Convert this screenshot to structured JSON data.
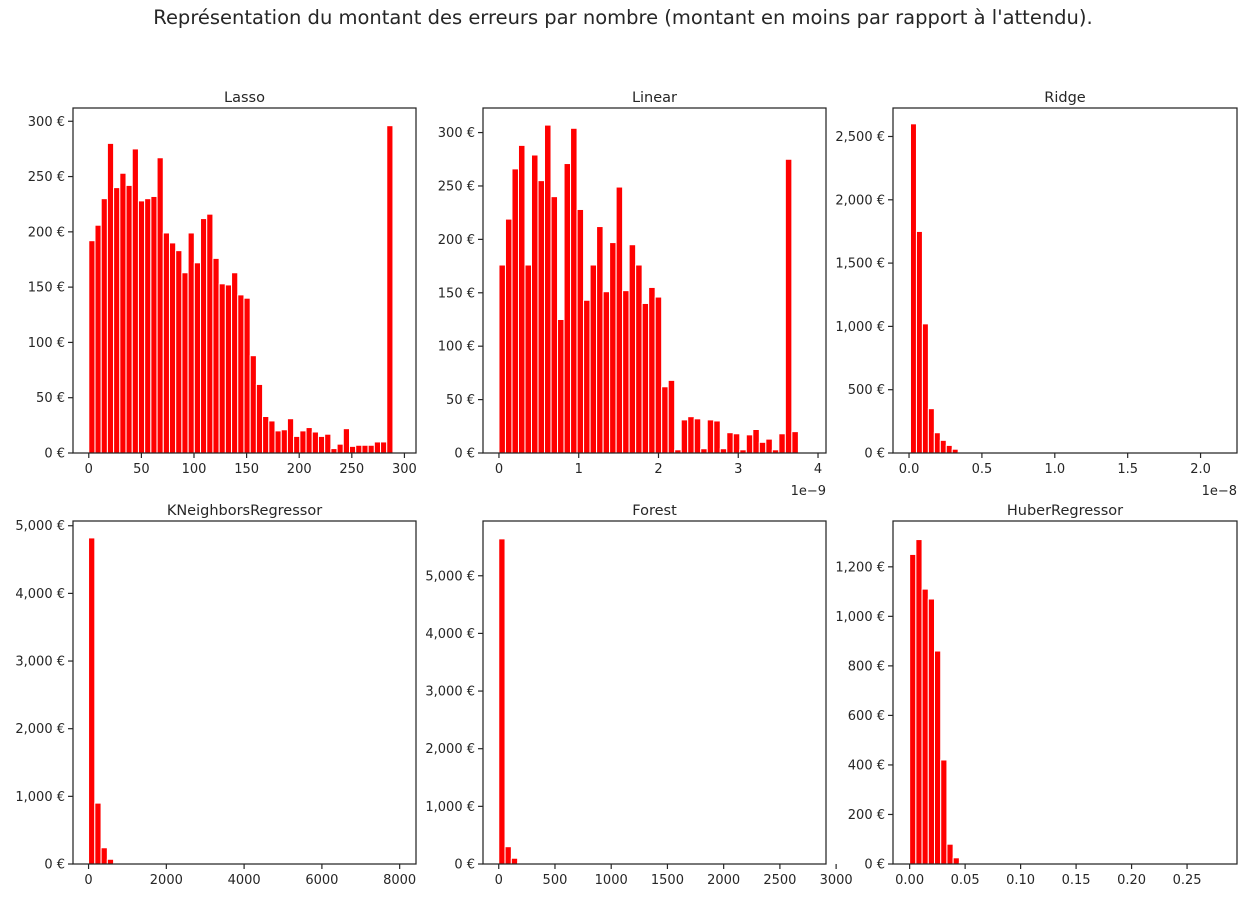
{
  "figure": {
    "suptitle": "Représentation du montant des erreurs par nombre (montant en moins par rapport à l'attendu).",
    "bar_color": "#ff0000",
    "axis_color": "#262626",
    "background": "#ffffff"
  },
  "chart_data": [
    {
      "type": "bar",
      "title": "Lasso",
      "xlim": [
        -15,
        311
      ],
      "ylim": [
        0,
        312
      ],
      "xticks": [
        0,
        50,
        100,
        150,
        200,
        250,
        300
      ],
      "xtick_labels": [
        "0",
        "50",
        "100",
        "150",
        "200",
        "250",
        "300"
      ],
      "yticks": [
        0,
        50,
        100,
        150,
        200,
        250,
        300
      ],
      "ytick_labels": [
        "0 €",
        "50 €",
        "100 €",
        "150 €",
        "200 €",
        "250 €",
        "300 €"
      ],
      "offset_label": "",
      "bin_edges_start": 0,
      "bin_width": 5.9,
      "values": [
        192,
        206,
        230,
        280,
        240,
        253,
        242,
        275,
        228,
        230,
        232,
        267,
        199,
        190,
        183,
        163,
        199,
        172,
        212,
        216,
        176,
        153,
        152,
        163,
        143,
        140,
        88,
        62,
        33,
        29,
        20,
        21,
        31,
        15,
        20,
        23,
        19,
        15,
        17,
        4,
        8,
        22,
        6,
        7,
        7,
        7,
        10,
        10,
        296
      ]
    },
    {
      "type": "bar",
      "title": "Linear",
      "xlim": [
        -0.2,
        4.1
      ],
      "ylim": [
        0,
        323
      ],
      "xticks": [
        0,
        1,
        2,
        3,
        4
      ],
      "xtick_labels": [
        "0",
        "1",
        "2",
        "3",
        "4"
      ],
      "yticks": [
        0,
        50,
        100,
        150,
        200,
        250,
        300
      ],
      "ytick_labels": [
        "0 €",
        "50 €",
        "100 €",
        "150 €",
        "200 €",
        "250 €",
        "300 €"
      ],
      "offset_label": "1e−9",
      "bin_edges_start": 0,
      "bin_width": 0.0816,
      "values": [
        176,
        219,
        266,
        288,
        176,
        279,
        255,
        307,
        240,
        125,
        271,
        304,
        228,
        143,
        176,
        212,
        151,
        197,
        249,
        152,
        195,
        176,
        140,
        155,
        146,
        62,
        68,
        3,
        31,
        34,
        32,
        4,
        31,
        30,
        4,
        19,
        18,
        3,
        17,
        22,
        10,
        13,
        3,
        18,
        275,
        20
      ]
    },
    {
      "type": "bar",
      "title": "Ridge",
      "xlim": [
        -0.11,
        2.25
      ],
      "ylim": [
        0,
        2725
      ],
      "xticks": [
        0,
        0.5,
        1.0,
        1.5,
        2.0
      ],
      "xtick_labels": [
        "0.0",
        "0.5",
        "1.0",
        "1.5",
        "2.0"
      ],
      "yticks": [
        0,
        500,
        1000,
        1500,
        2000,
        2500
      ],
      "ytick_labels": [
        "0 €",
        "500 €",
        "1,000 €",
        "1,500 €",
        "2,000 €",
        "2,500 €"
      ],
      "offset_label": "1e−8",
      "bin_edges_start": 0.01,
      "bin_width": 0.0409,
      "values": [
        2600,
        1750,
        1020,
        350,
        160,
        100,
        60,
        30,
        5,
        3,
        2,
        2,
        1,
        1,
        1,
        0,
        0,
        0,
        0,
        0,
        0,
        0,
        0,
        0,
        0,
        0,
        0,
        0,
        0,
        0,
        0,
        0,
        0,
        0,
        0,
        0,
        0,
        0,
        0,
        0,
        0,
        0,
        0,
        0,
        0,
        0,
        0,
        0,
        0,
        0
      ]
    },
    {
      "type": "bar",
      "title": "KNeighborsRegressor",
      "xlim": [
        -400,
        8420
      ],
      "ylim": [
        0,
        5070
      ],
      "xticks": [
        0,
        2000,
        4000,
        6000,
        8000
      ],
      "xtick_labels": [
        "0",
        "2000",
        "4000",
        "6000",
        "8000"
      ],
      "yticks": [
        0,
        1000,
        2000,
        3000,
        4000,
        5000
      ],
      "ytick_labels": [
        "0 €",
        "1,000 €",
        "2,000 €",
        "3,000 €",
        "4,000 €",
        "5,000 €"
      ],
      "offset_label": "",
      "bin_edges_start": 0,
      "bin_width": 161,
      "values": [
        4820,
        900,
        240,
        70,
        10,
        5,
        3,
        2,
        2,
        1,
        1,
        1,
        1,
        1,
        0,
        0,
        0,
        0,
        0,
        0,
        0,
        0,
        0,
        0,
        0,
        0,
        0,
        0,
        0,
        0,
        0,
        0,
        0,
        0,
        0,
        0,
        0,
        0,
        0,
        0,
        0,
        0,
        0,
        0,
        0,
        0,
        0,
        0,
        0,
        0
      ]
    },
    {
      "type": "bar",
      "title": "Forest",
      "xlim": [
        -140,
        2910
      ],
      "ylim": [
        0,
        5950
      ],
      "xticks": [
        0,
        500,
        1000,
        1500,
        2000,
        2500,
        3000
      ],
      "xtick_labels": [
        "0",
        "500",
        "1000",
        "1500",
        "2000",
        "2500",
        "3000"
      ],
      "yticks": [
        0,
        1000,
        2000,
        3000,
        4000,
        5000
      ],
      "ytick_labels": [
        "0 €",
        "1,000 €",
        "2,000 €",
        "3,000 €",
        "4,000 €",
        "5,000 €"
      ],
      "offset_label": "",
      "bin_edges_start": 0,
      "bin_width": 56,
      "values": [
        5640,
        300,
        100,
        15,
        5,
        3,
        2,
        1,
        1,
        1,
        0,
        0,
        0,
        0,
        0,
        0,
        0,
        0,
        0,
        0,
        0,
        0,
        0,
        0,
        0,
        0,
        0,
        0,
        0,
        0,
        0,
        0,
        0,
        0,
        0,
        0,
        0,
        0,
        0,
        0,
        0,
        0,
        0,
        0,
        0,
        0,
        0,
        0,
        0,
        0
      ]
    },
    {
      "type": "bar",
      "title": "HuberRegressor",
      "xlim": [
        -0.015,
        0.295
      ],
      "ylim": [
        0,
        1385
      ],
      "xticks": [
        0,
        0.05,
        0.1,
        0.15,
        0.2,
        0.25
      ],
      "xtick_labels": [
        "0.00",
        "0.05",
        "0.10",
        "0.15",
        "0.20",
        "0.25"
      ],
      "yticks": [
        0,
        200,
        400,
        600,
        800,
        1000,
        1200
      ],
      "ytick_labels": [
        "0 €",
        "200 €",
        "400 €",
        "600 €",
        "800 €",
        "1,000 €",
        "1,200 €"
      ],
      "offset_label": "",
      "bin_edges_start": 0,
      "bin_width": 0.0056,
      "values": [
        1250,
        1310,
        1110,
        1070,
        860,
        420,
        80,
        25,
        4,
        2,
        1,
        1,
        1,
        0,
        0,
        0,
        0,
        0,
        0,
        0,
        0,
        0,
        0,
        0,
        0,
        0,
        0,
        0,
        0,
        0,
        0,
        0,
        0,
        0,
        0,
        0,
        0,
        0,
        0,
        0,
        0,
        0,
        0,
        0,
        0,
        0,
        0,
        0,
        0,
        0
      ]
    }
  ]
}
